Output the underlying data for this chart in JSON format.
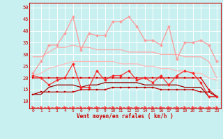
{
  "x": [
    0,
    1,
    2,
    3,
    4,
    5,
    6,
    7,
    8,
    9,
    10,
    11,
    12,
    13,
    14,
    15,
    16,
    17,
    18,
    19,
    20,
    21,
    22,
    23
  ],
  "background_color": "#c8f0f0",
  "grid_color": "#aadddd",
  "xlabel": "Vent moyen/en rafales ( km/h )",
  "ylim": [
    7,
    52
  ],
  "yticks": [
    10,
    15,
    20,
    25,
    30,
    35,
    40,
    45,
    50
  ],
  "series": [
    {
      "name": "dashed_arrow",
      "y": [
        7.5,
        7.5,
        7.5,
        7.5,
        7.5,
        7.5,
        7.5,
        7.5,
        7.5,
        7.5,
        7.5,
        7.5,
        7.5,
        7.5,
        7.5,
        7.5,
        7.5,
        7.5,
        7.5,
        7.5,
        7.5,
        7.5,
        7.5,
        7.5
      ],
      "color": "#ff4444",
      "lw": 0.7,
      "ls": "--",
      "marker": ">",
      "ms": 2.5,
      "zorder": 3
    },
    {
      "name": "line_pink_high_rafales",
      "y": [
        22,
        27,
        34,
        34,
        39,
        46,
        32,
        39,
        38,
        38,
        44,
        44,
        46,
        42,
        36,
        36,
        34,
        42,
        28,
        35,
        35,
        36,
        34,
        27
      ],
      "color": "#ff9999",
      "lw": 0.9,
      "ls": "-",
      "marker": "D",
      "ms": 2.0,
      "zorder": 3
    },
    {
      "name": "line_pink_smooth_upper",
      "y": [
        29,
        29,
        31,
        33,
        33,
        34,
        33,
        33,
        32,
        32,
        32,
        32,
        31,
        31,
        31,
        31,
        30,
        30,
        30,
        29,
        29,
        29,
        27,
        20
      ],
      "color": "#ffaaaa",
      "lw": 0.9,
      "ls": "-",
      "marker": null,
      "ms": 0,
      "zorder": 2
    },
    {
      "name": "line_pink_lower_smooth",
      "y": [
        21,
        22,
        24,
        25,
        26,
        27,
        27,
        27,
        27,
        27,
        27,
        26,
        26,
        26,
        25,
        25,
        24,
        24,
        23,
        23,
        22,
        22,
        20,
        19
      ],
      "color": "#ffbbbb",
      "lw": 0.9,
      "ls": "-",
      "marker": null,
      "ms": 0,
      "zorder": 2
    },
    {
      "name": "line_red_wavy",
      "y": [
        21,
        20,
        17,
        19,
        20,
        26,
        16,
        16,
        23,
        19,
        21,
        21,
        23,
        19,
        20,
        18,
        21,
        17,
        21,
        23,
        22,
        18,
        12,
        12
      ],
      "color": "#ff2222",
      "lw": 0.8,
      "ls": "-",
      "marker": "D",
      "ms": 2.0,
      "zorder": 4
    },
    {
      "name": "line_red_medium",
      "y": [
        20,
        20,
        20,
        20,
        20,
        20,
        20,
        20,
        20,
        20,
        20,
        20,
        20,
        20,
        20,
        20,
        20,
        20,
        20,
        20,
        20,
        20,
        15,
        12
      ],
      "color": "#dd0000",
      "lw": 0.9,
      "ls": "-",
      "marker": "s",
      "ms": 1.8,
      "zorder": 3
    },
    {
      "name": "line_red_main",
      "y": [
        13,
        14,
        14,
        14,
        14,
        14,
        15,
        15,
        15,
        15,
        16,
        16,
        16,
        16,
        16,
        16,
        15,
        15,
        15,
        15,
        15,
        14,
        14,
        12
      ],
      "color": "#bb0000",
      "lw": 0.9,
      "ls": "-",
      "marker": "s",
      "ms": 1.8,
      "zorder": 3
    },
    {
      "name": "line_darkred_flat",
      "y": [
        13,
        13,
        16,
        17,
        17,
        17,
        16,
        17,
        17,
        18,
        18,
        18,
        18,
        18,
        17,
        17,
        17,
        17,
        17,
        16,
        16,
        16,
        12,
        12
      ],
      "color": "#990000",
      "lw": 0.9,
      "ls": "-",
      "marker": null,
      "ms": 0,
      "zorder": 2
    }
  ]
}
